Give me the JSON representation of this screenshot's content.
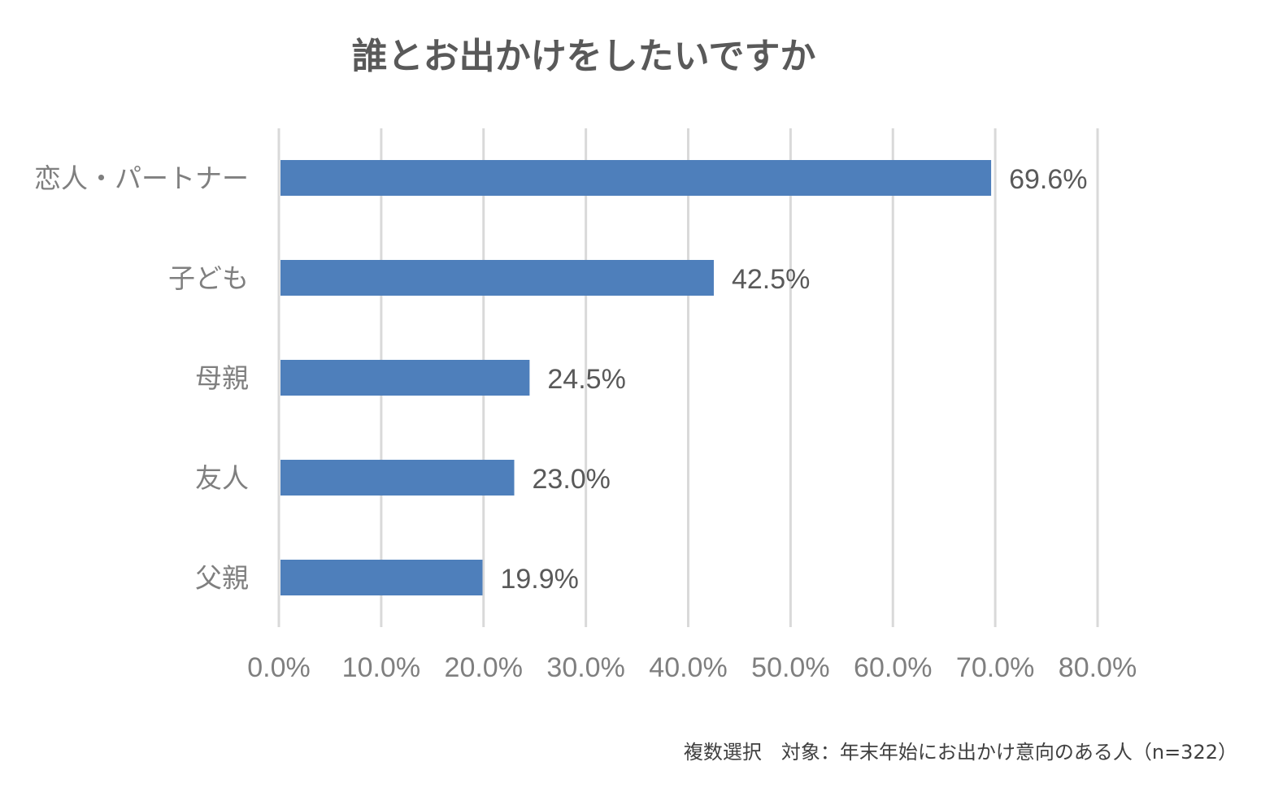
{
  "chart_data": {
    "type": "bar",
    "orientation": "horizontal",
    "title": "誰とお出かけをしたいですか",
    "categories": [
      "恋人・パートナー",
      "子ども",
      "母親",
      "友人",
      "父親"
    ],
    "values": [
      69.6,
      42.5,
      24.5,
      23.0,
      19.9
    ],
    "data_labels": [
      "69.6%",
      "42.5%",
      "24.5%",
      "23.0%",
      "19.9%"
    ],
    "xlim": [
      0,
      80
    ],
    "xticks": [
      0,
      10,
      20,
      30,
      40,
      50,
      60,
      70,
      80
    ],
    "xtick_labels": [
      "0.0%",
      "10.0%",
      "20.0%",
      "30.0%",
      "40.0%",
      "50.0%",
      "60.0%",
      "70.0%",
      "80.0%"
    ],
    "grid": true,
    "legend": "none",
    "bar_color": "#4e7fbb"
  },
  "note": "複数選択　対象：年末年始にお出かけ意向のある人（n=322）"
}
